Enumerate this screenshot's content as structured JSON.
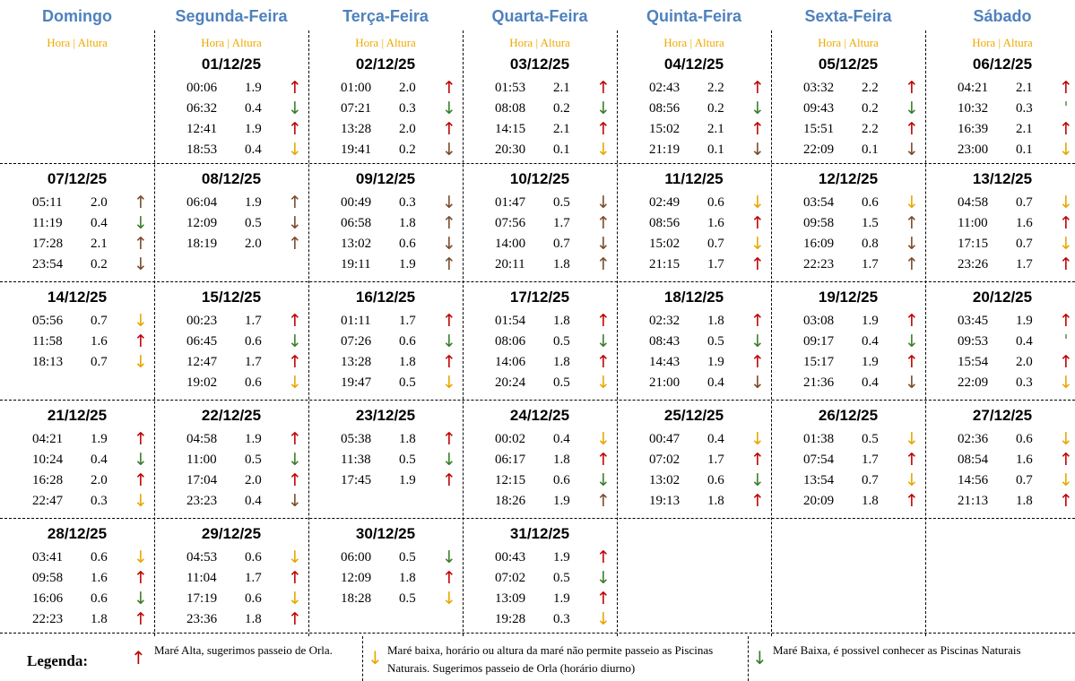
{
  "headers": {
    "days": [
      "Domingo",
      "Segunda-Feira",
      "Terça-Feira",
      "Quarta-Feira",
      "Quinta-Feira",
      "Sexta-Feira",
      "Sábado"
    ],
    "sub": "Hora | Altura"
  },
  "colors": {
    "up": "#c00000",
    "down_yellow": "#e6a800",
    "down_green": "#3a7d2a",
    "brown": "#7a4a2a",
    "header_blue": "#4f81bd",
    "sub_yellow": "#f0a800"
  },
  "weeks": [
    [
      null,
      {
        "date": "01/12/25",
        "rows": [
          [
            "00:06",
            "1.9",
            "up"
          ],
          [
            "06:32",
            "0.4",
            "dg"
          ],
          [
            "12:41",
            "1.9",
            "up"
          ],
          [
            "18:53",
            "0.4",
            "dy"
          ]
        ]
      },
      {
        "date": "02/12/25",
        "rows": [
          [
            "01:00",
            "2.0",
            "up"
          ],
          [
            "07:21",
            "0.3",
            "dg"
          ],
          [
            "13:28",
            "2.0",
            "up"
          ],
          [
            "19:41",
            "0.2",
            "db"
          ]
        ]
      },
      {
        "date": "03/12/25",
        "rows": [
          [
            "01:53",
            "2.1",
            "up"
          ],
          [
            "08:08",
            "0.2",
            "dg"
          ],
          [
            "14:15",
            "2.1",
            "up"
          ],
          [
            "20:30",
            "0.1",
            "dy"
          ]
        ]
      },
      {
        "date": "04/12/25",
        "rows": [
          [
            "02:43",
            "2.2",
            "up"
          ],
          [
            "08:56",
            "0.2",
            "dg"
          ],
          [
            "15:02",
            "2.1",
            "up"
          ],
          [
            "21:19",
            "0.1",
            "db"
          ]
        ]
      },
      {
        "date": "05/12/25",
        "rows": [
          [
            "03:32",
            "2.2",
            "up"
          ],
          [
            "09:43",
            "0.2",
            "dg"
          ],
          [
            "15:51",
            "2.2",
            "up"
          ],
          [
            "22:09",
            "0.1",
            "db"
          ]
        ]
      },
      {
        "date": "06/12/25",
        "rows": [
          [
            "04:21",
            "2.1",
            "up"
          ],
          [
            "10:32",
            "0.3",
            "dots"
          ],
          [
            "16:39",
            "2.1",
            "up"
          ],
          [
            "23:00",
            "0.1",
            "dy"
          ]
        ]
      }
    ],
    [
      {
        "date": "07/12/25",
        "rows": [
          [
            "05:11",
            "2.0",
            "ub"
          ],
          [
            "11:19",
            "0.4",
            "dg"
          ],
          [
            "17:28",
            "2.1",
            "ub"
          ],
          [
            "23:54",
            "0.2",
            "db"
          ]
        ]
      },
      {
        "date": "08/12/25",
        "rows": [
          [
            "06:04",
            "1.9",
            "ub"
          ],
          [
            "12:09",
            "0.5",
            "db"
          ],
          [
            "18:19",
            "2.0",
            "ub"
          ]
        ]
      },
      {
        "date": "09/12/25",
        "rows": [
          [
            "00:49",
            "0.3",
            "db"
          ],
          [
            "06:58",
            "1.8",
            "ub"
          ],
          [
            "13:02",
            "0.6",
            "db"
          ],
          [
            "19:11",
            "1.9",
            "ub"
          ]
        ]
      },
      {
        "date": "10/12/25",
        "rows": [
          [
            "01:47",
            "0.5",
            "db"
          ],
          [
            "07:56",
            "1.7",
            "ub"
          ],
          [
            "14:00",
            "0.7",
            "db"
          ],
          [
            "20:11",
            "1.8",
            "ub"
          ]
        ]
      },
      {
        "date": "11/12/25",
        "rows": [
          [
            "02:49",
            "0.6",
            "dy"
          ],
          [
            "08:56",
            "1.6",
            "up"
          ],
          [
            "15:02",
            "0.7",
            "dy"
          ],
          [
            "21:15",
            "1.7",
            "up"
          ]
        ]
      },
      {
        "date": "12/12/25",
        "rows": [
          [
            "03:54",
            "0.6",
            "dy"
          ],
          [
            "09:58",
            "1.5",
            "ub"
          ],
          [
            "16:09",
            "0.8",
            "db"
          ],
          [
            "22:23",
            "1.7",
            "ub"
          ]
        ]
      },
      {
        "date": "13/12/25",
        "rows": [
          [
            "04:58",
            "0.7",
            "dy"
          ],
          [
            "11:00",
            "1.6",
            "up"
          ],
          [
            "17:15",
            "0.7",
            "dy"
          ],
          [
            "23:26",
            "1.7",
            "up"
          ]
        ]
      }
    ],
    [
      {
        "date": "14/12/25",
        "rows": [
          [
            "05:56",
            "0.7",
            "dy"
          ],
          [
            "11:58",
            "1.6",
            "up"
          ],
          [
            "18:13",
            "0.7",
            "dy"
          ]
        ]
      },
      {
        "date": "15/12/25",
        "rows": [
          [
            "00:23",
            "1.7",
            "up"
          ],
          [
            "06:45",
            "0.6",
            "dg"
          ],
          [
            "12:47",
            "1.7",
            "up"
          ],
          [
            "19:02",
            "0.6",
            "dy"
          ]
        ]
      },
      {
        "date": "16/12/25",
        "rows": [
          [
            "01:11",
            "1.7",
            "up"
          ],
          [
            "07:26",
            "0.6",
            "dg"
          ],
          [
            "13:28",
            "1.8",
            "up"
          ],
          [
            "19:47",
            "0.5",
            "dy"
          ]
        ]
      },
      {
        "date": "17/12/25",
        "rows": [
          [
            "01:54",
            "1.8",
            "up"
          ],
          [
            "08:06",
            "0.5",
            "dg"
          ],
          [
            "14:06",
            "1.8",
            "up"
          ],
          [
            "20:24",
            "0.5",
            "dy"
          ]
        ]
      },
      {
        "date": "18/12/25",
        "rows": [
          [
            "02:32",
            "1.8",
            "up"
          ],
          [
            "08:43",
            "0.5",
            "dg"
          ],
          [
            "14:43",
            "1.9",
            "up"
          ],
          [
            "21:00",
            "0.4",
            "db"
          ]
        ]
      },
      {
        "date": "19/12/25",
        "rows": [
          [
            "03:08",
            "1.9",
            "up"
          ],
          [
            "09:17",
            "0.4",
            "dg"
          ],
          [
            "15:17",
            "1.9",
            "up"
          ],
          [
            "21:36",
            "0.4",
            "db"
          ]
        ]
      },
      {
        "date": "20/12/25",
        "rows": [
          [
            "03:45",
            "1.9",
            "up"
          ],
          [
            "09:53",
            "0.4",
            "dots"
          ],
          [
            "15:54",
            "2.0",
            "up"
          ],
          [
            "22:09",
            "0.3",
            "dy"
          ]
        ]
      }
    ],
    [
      {
        "date": "21/12/25",
        "rows": [
          [
            "04:21",
            "1.9",
            "up"
          ],
          [
            "10:24",
            "0.4",
            "dg"
          ],
          [
            "16:28",
            "2.0",
            "up"
          ],
          [
            "22:47",
            "0.3",
            "dy"
          ]
        ]
      },
      {
        "date": "22/12/25",
        "rows": [
          [
            "04:58",
            "1.9",
            "up"
          ],
          [
            "11:00",
            "0.5",
            "dg"
          ],
          [
            "17:04",
            "2.0",
            "up"
          ],
          [
            "23:23",
            "0.4",
            "db"
          ]
        ]
      },
      {
        "date": "23/12/25",
        "rows": [
          [
            "05:38",
            "1.8",
            "up"
          ],
          [
            "11:38",
            "0.5",
            "dg"
          ],
          [
            "17:45",
            "1.9",
            "up"
          ]
        ]
      },
      {
        "date": "24/12/25",
        "rows": [
          [
            "00:02",
            "0.4",
            "dy"
          ],
          [
            "06:17",
            "1.8",
            "up"
          ],
          [
            "12:15",
            "0.6",
            "dg"
          ],
          [
            "18:26",
            "1.9",
            "ub"
          ]
        ]
      },
      {
        "date": "25/12/25",
        "rows": [
          [
            "00:47",
            "0.4",
            "dy"
          ],
          [
            "07:02",
            "1.7",
            "up"
          ],
          [
            "13:02",
            "0.6",
            "dg"
          ],
          [
            "19:13",
            "1.8",
            "up"
          ]
        ]
      },
      {
        "date": "26/12/25",
        "rows": [
          [
            "01:38",
            "0.5",
            "dy"
          ],
          [
            "07:54",
            "1.7",
            "up"
          ],
          [
            "13:54",
            "0.7",
            "dy"
          ],
          [
            "20:09",
            "1.8",
            "up"
          ]
        ]
      },
      {
        "date": "27/12/25",
        "rows": [
          [
            "02:36",
            "0.6",
            "dy"
          ],
          [
            "08:54",
            "1.6",
            "up"
          ],
          [
            "14:56",
            "0.7",
            "dy"
          ],
          [
            "21:13",
            "1.8",
            "up"
          ]
        ]
      }
    ],
    [
      {
        "date": "28/12/25",
        "rows": [
          [
            "03:41",
            "0.6",
            "dy"
          ],
          [
            "09:58",
            "1.6",
            "up"
          ],
          [
            "16:06",
            "0.6",
            "dg"
          ],
          [
            "22:23",
            "1.8",
            "up"
          ]
        ]
      },
      {
        "date": "29/12/25",
        "rows": [
          [
            "04:53",
            "0.6",
            "dy"
          ],
          [
            "11:04",
            "1.7",
            "up"
          ],
          [
            "17:19",
            "0.6",
            "dy"
          ],
          [
            "23:36",
            "1.8",
            "up"
          ]
        ]
      },
      {
        "date": "30/12/25",
        "rows": [
          [
            "06:00",
            "0.5",
            "dg"
          ],
          [
            "12:09",
            "1.8",
            "up"
          ],
          [
            "18:28",
            "0.5",
            "dy"
          ]
        ]
      },
      {
        "date": "31/12/25",
        "rows": [
          [
            "00:43",
            "1.9",
            "up"
          ],
          [
            "07:02",
            "0.5",
            "dg"
          ],
          [
            "13:09",
            "1.9",
            "up"
          ],
          [
            "19:28",
            "0.3",
            "dy"
          ]
        ]
      },
      null,
      null,
      null
    ]
  ],
  "legend": {
    "title": "Legenda:",
    "items": [
      {
        "arrow": "up",
        "text": "Maré Alta, sugerimos passeio de Orla."
      },
      {
        "arrow": "dy",
        "text": "Maré baixa, horário ou altura da maré não permite passeio as Piscinas Naturais. Sugerimos passeio de Orla (horário diurno)"
      },
      {
        "arrow": "dg",
        "text": "Maré Baixa, é possivel conhecer as Piscinas Naturais"
      }
    ]
  }
}
